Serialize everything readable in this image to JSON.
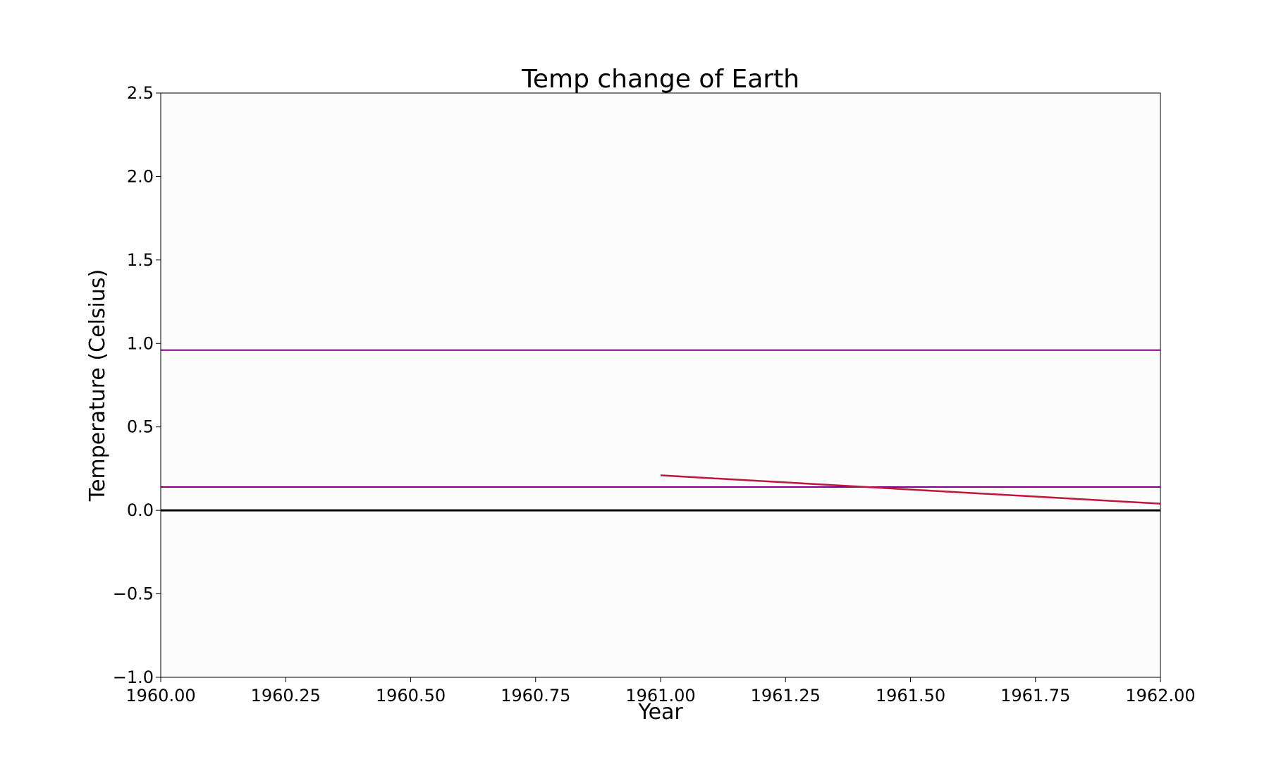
{
  "chart_data": {
    "type": "line",
    "title": "Temp change of Earth",
    "xlabel": "Year",
    "ylabel": "Temperature (Celsius)",
    "xlim": [
      1960.0,
      1962.0
    ],
    "ylim": [
      -1.0,
      2.5
    ],
    "xticks": [
      "1960.00",
      "1960.25",
      "1960.50",
      "1960.75",
      "1961.00",
      "1961.25",
      "1961.50",
      "1961.75",
      "1962.00"
    ],
    "yticks": [
      "−1.0",
      "−0.5",
      "0.0",
      "0.5",
      "1.0",
      "1.5",
      "2.0",
      "2.5"
    ],
    "grid": false,
    "plot_background": "#fcfcfc",
    "series": [
      {
        "x": [
          1961.0,
          1962.0
        ],
        "y": [
          0.21,
          0.04
        ],
        "color": "#c0143c",
        "style": "solid"
      }
    ],
    "reference_lines": [
      {
        "y": 0.96,
        "color": "#800080"
      },
      {
        "y": 0.14,
        "color": "#800080"
      },
      {
        "y": 0.0,
        "color": "#000000"
      }
    ]
  }
}
